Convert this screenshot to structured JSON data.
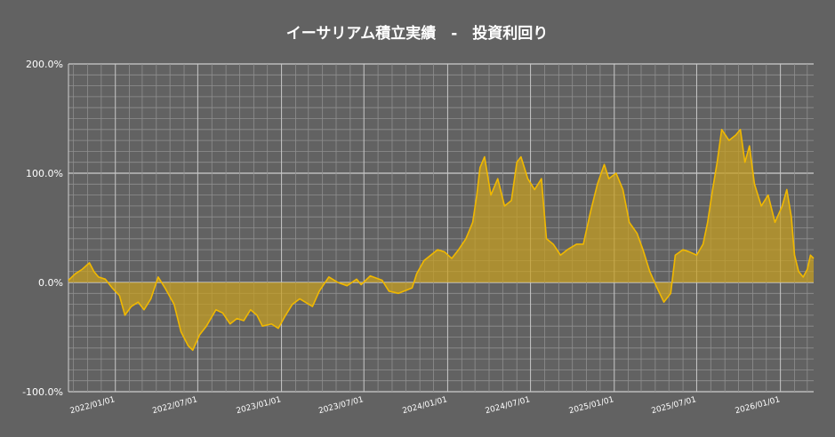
{
  "chart_data": {
    "type": "area",
    "title": "イーサリアム積立実績　-　投資利回り",
    "xlabel": "",
    "ylabel": "",
    "ylim": [
      -100,
      200
    ],
    "xlim": [
      "2021-09-20",
      "2026-03-15"
    ],
    "grid": true,
    "colors": {
      "background": "#626262",
      "line": "#f0b800",
      "fill": "#c8a020",
      "grid": "#8f8f8f",
      "zero_grid": "#e8e8e8",
      "text": "#ffffff"
    },
    "y_ticks": [
      {
        "value": -100,
        "label": "-100.0%"
      },
      {
        "value": 0,
        "label": "0.0%"
      },
      {
        "value": 100,
        "label": "100.0%"
      },
      {
        "value": 200,
        "label": "200.0%"
      }
    ],
    "x_ticks": [
      {
        "date": "2022-01-01",
        "label": "2022/01/01"
      },
      {
        "date": "2022-07-01",
        "label": "2022/07/01"
      },
      {
        "date": "2023-01-01",
        "label": "2023/01/01"
      },
      {
        "date": "2023-07-01",
        "label": "2023/07/01"
      },
      {
        "date": "2024-01-01",
        "label": "2024/01/01"
      },
      {
        "date": "2024-07-01",
        "label": "2024/07/01"
      },
      {
        "date": "2025-01-01",
        "label": "2025/01/01"
      },
      {
        "date": "2025-07-01",
        "label": "2025/07/01"
      },
      {
        "date": "2026-01-01",
        "label": "2026/01/01"
      }
    ],
    "series": [
      {
        "points": [
          [
            "2021-09-20",
            2
          ],
          [
            "2021-10-05",
            8
          ],
          [
            "2021-10-20",
            12
          ],
          [
            "2021-11-05",
            18
          ],
          [
            "2021-11-15",
            10
          ],
          [
            "2021-11-25",
            5
          ],
          [
            "2021-12-10",
            3
          ],
          [
            "2021-12-25",
            -5
          ],
          [
            "2022-01-10",
            -12
          ],
          [
            "2022-01-22",
            -30
          ],
          [
            "2022-02-05",
            -22
          ],
          [
            "2022-02-20",
            -18
          ],
          [
            "2022-03-05",
            -25
          ],
          [
            "2022-03-20",
            -15
          ],
          [
            "2022-04-05",
            5
          ],
          [
            "2022-04-20",
            -5
          ],
          [
            "2022-05-10",
            -20
          ],
          [
            "2022-05-25",
            -45
          ],
          [
            "2022-06-10",
            -58
          ],
          [
            "2022-06-20",
            -62
          ],
          [
            "2022-07-05",
            -48
          ],
          [
            "2022-07-20",
            -40
          ],
          [
            "2022-08-10",
            -25
          ],
          [
            "2022-08-25",
            -28
          ],
          [
            "2022-09-10",
            -38
          ],
          [
            "2022-09-25",
            -33
          ],
          [
            "2022-10-10",
            -35
          ],
          [
            "2022-10-25",
            -25
          ],
          [
            "2022-11-08",
            -30
          ],
          [
            "2022-11-20",
            -40
          ],
          [
            "2022-12-10",
            -38
          ],
          [
            "2022-12-25",
            -42
          ],
          [
            "2023-01-10",
            -30
          ],
          [
            "2023-01-25",
            -20
          ],
          [
            "2023-02-10",
            -15
          ],
          [
            "2023-03-10",
            -22
          ],
          [
            "2023-03-25",
            -8
          ],
          [
            "2023-04-15",
            5
          ],
          [
            "2023-05-05",
            0
          ],
          [
            "2023-05-25",
            -3
          ],
          [
            "2023-06-15",
            3
          ],
          [
            "2023-06-25",
            -2
          ],
          [
            "2023-07-15",
            6
          ],
          [
            "2023-08-10",
            2
          ],
          [
            "2023-08-25",
            -8
          ],
          [
            "2023-09-15",
            -10
          ],
          [
            "2023-10-15",
            -5
          ],
          [
            "2023-10-25",
            8
          ],
          [
            "2023-11-10",
            20
          ],
          [
            "2023-11-25",
            25
          ],
          [
            "2023-12-10",
            30
          ],
          [
            "2023-12-25",
            28
          ],
          [
            "2024-01-10",
            22
          ],
          [
            "2024-01-25",
            30
          ],
          [
            "2024-02-10",
            40
          ],
          [
            "2024-02-25",
            55
          ],
          [
            "2024-03-05",
            80
          ],
          [
            "2024-03-12",
            105
          ],
          [
            "2024-03-22",
            115
          ],
          [
            "2024-04-05",
            80
          ],
          [
            "2024-04-20",
            95
          ],
          [
            "2024-05-05",
            70
          ],
          [
            "2024-05-20",
            75
          ],
          [
            "2024-06-01",
            110
          ],
          [
            "2024-06-10",
            115
          ],
          [
            "2024-06-25",
            95
          ],
          [
            "2024-07-10",
            85
          ],
          [
            "2024-07-25",
            95
          ],
          [
            "2024-08-05",
            40
          ],
          [
            "2024-08-20",
            35
          ],
          [
            "2024-09-05",
            25
          ],
          [
            "2024-09-20",
            30
          ],
          [
            "2024-10-10",
            35
          ],
          [
            "2024-10-25",
            35
          ],
          [
            "2024-11-10",
            65
          ],
          [
            "2024-11-25",
            90
          ],
          [
            "2024-12-10",
            108
          ],
          [
            "2024-12-20",
            95
          ],
          [
            "2025-01-05",
            100
          ],
          [
            "2025-01-20",
            85
          ],
          [
            "2025-02-03",
            55
          ],
          [
            "2025-02-20",
            45
          ],
          [
            "2025-03-05",
            30
          ],
          [
            "2025-03-20",
            10
          ],
          [
            "2025-04-05",
            -5
          ],
          [
            "2025-04-20",
            -18
          ],
          [
            "2025-05-05",
            -10
          ],
          [
            "2025-05-15",
            25
          ],
          [
            "2025-06-01",
            30
          ],
          [
            "2025-06-15",
            28
          ],
          [
            "2025-07-01",
            25
          ],
          [
            "2025-07-15",
            35
          ],
          [
            "2025-07-25",
            55
          ],
          [
            "2025-08-05",
            85
          ],
          [
            "2025-08-15",
            110
          ],
          [
            "2025-08-25",
            140
          ],
          [
            "2025-09-10",
            130
          ],
          [
            "2025-09-25",
            135
          ],
          [
            "2025-10-05",
            140
          ],
          [
            "2025-10-15",
            110
          ],
          [
            "2025-10-25",
            125
          ],
          [
            "2025-11-05",
            90
          ],
          [
            "2025-11-20",
            70
          ],
          [
            "2025-12-05",
            80
          ],
          [
            "2025-12-20",
            55
          ],
          [
            "2026-01-05",
            70
          ],
          [
            "2026-01-15",
            85
          ],
          [
            "2026-01-25",
            60
          ],
          [
            "2026-02-01",
            25
          ],
          [
            "2026-02-10",
            10
          ],
          [
            "2026-02-20",
            5
          ],
          [
            "2026-03-01",
            12
          ],
          [
            "2026-03-08",
            25
          ],
          [
            "2026-03-15",
            22
          ]
        ]
      }
    ]
  }
}
